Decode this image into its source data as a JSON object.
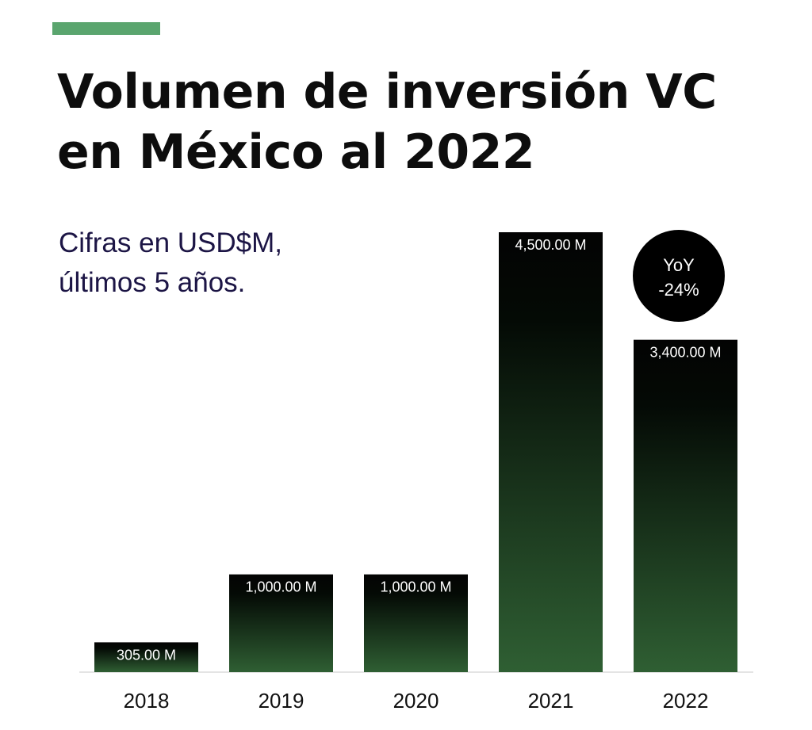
{
  "header": {
    "title": "Volumen de inversión VC en México al 2022",
    "subtitle_line1": "Cifras en USD$M,",
    "subtitle_line2": "últimos 5 años."
  },
  "colors": {
    "accent": "#5aa56e",
    "title": "#0d0d0d",
    "subtitle": "#1c1545",
    "bar_top": "#030303",
    "bar_bottom": "#2f5f33",
    "badge": "#000000"
  },
  "badge": {
    "line1": "YoY",
    "line2": "-24%"
  },
  "chart_data": {
    "type": "bar",
    "title": "Volumen de inversión VC en México al 2022",
    "subtitle": "Cifras en USD$M, últimos 5 años.",
    "categories": [
      "2018",
      "2019",
      "2020",
      "2021",
      "2022"
    ],
    "values": [
      305,
      1000,
      1000,
      4500,
      3400
    ],
    "data_labels": [
      "305.00 M",
      "1,000.00 M",
      "1,000.00 M",
      "4,500.00 M",
      "3,400.00 M"
    ],
    "unit": "USD$M",
    "ylim": [
      0,
      4500
    ],
    "grid": false,
    "legend": "none",
    "annotations": [
      "YoY -24%"
    ]
  }
}
